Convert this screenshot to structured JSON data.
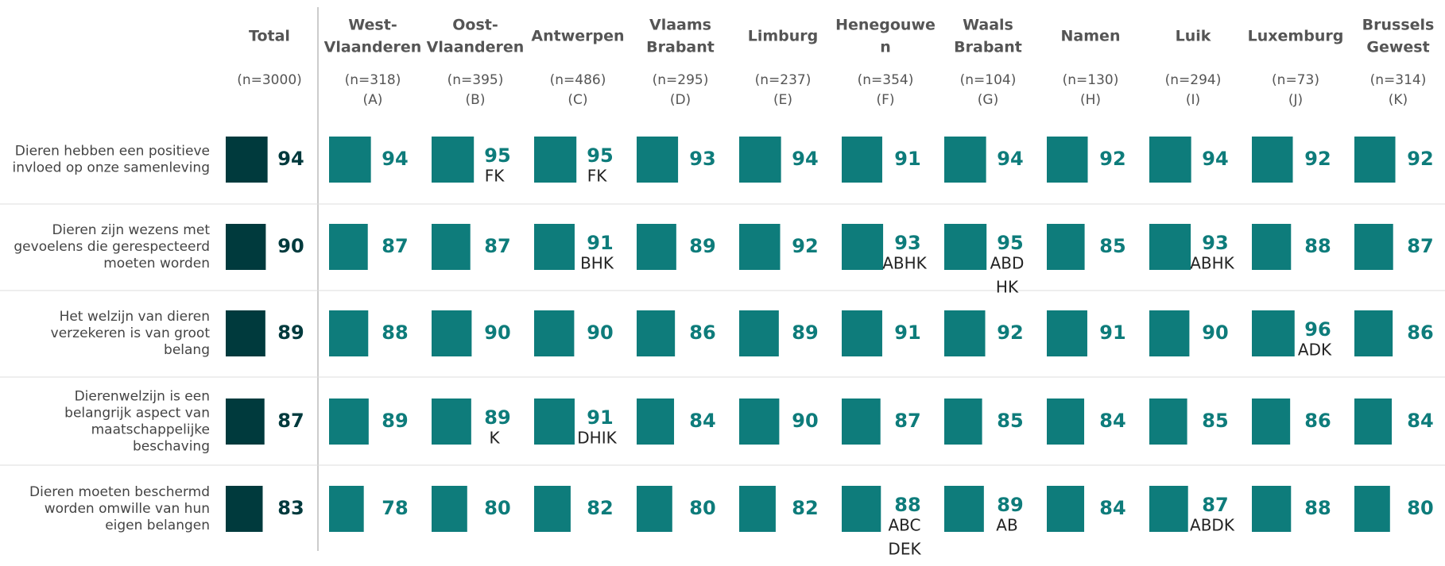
{
  "columns": [
    {
      "name": [
        "Total"
      ],
      "n": "(n=3000)"
    },
    {
      "name": [
        "West-",
        "Vlaanderen"
      ],
      "n": "(n=318)",
      "letter": "(A)"
    },
    {
      "name": [
        "Oost-",
        "Vlaanderen"
      ],
      "n": "(n=395)",
      "letter": "(B)"
    },
    {
      "name": [
        "Antwerpen"
      ],
      "n": "(n=486)",
      "letter": "(C)"
    },
    {
      "name": [
        "Vlaams",
        "Brabant"
      ],
      "n": "(n=295)",
      "letter": "(D)"
    },
    {
      "name": [
        "Limburg"
      ],
      "n": "(n=237)",
      "letter": "(E)"
    },
    {
      "name": [
        "Henegouwe",
        "n"
      ],
      "n": "(n=354)",
      "letter": "(F)"
    },
    {
      "name": [
        "Waals",
        "Brabant"
      ],
      "n": "(n=104)",
      "letter": "(G)"
    },
    {
      "name": [
        "Namen"
      ],
      "n": "(n=130)",
      "letter": "(H)"
    },
    {
      "name": [
        "Luik"
      ],
      "n": "(n=294)",
      "letter": "(I)"
    },
    {
      "name": [
        "Luxemburg"
      ],
      "n": "(n=73)",
      "letter": "(J)"
    },
    {
      "name": [
        "Brussels",
        "Gewest"
      ],
      "n": "(n=314)",
      "letter": "(K)"
    }
  ],
  "rows": [
    {
      "label": [
        "Dieren hebben een positieve",
        "invloed op onze samenleving"
      ],
      "values": [
        94,
        94,
        95,
        95,
        93,
        94,
        91,
        94,
        92,
        94,
        92,
        92
      ],
      "sig": [
        null,
        null,
        [
          "FK"
        ],
        [
          "FK"
        ],
        null,
        null,
        null,
        null,
        null,
        null,
        null,
        null
      ]
    },
    {
      "label": [
        "Dieren zijn wezens met",
        "gevoelens die gerespecteerd",
        "moeten worden"
      ],
      "values": [
        90,
        87,
        87,
        91,
        89,
        92,
        93,
        95,
        85,
        93,
        88,
        87
      ],
      "sig": [
        null,
        null,
        null,
        [
          "BHK"
        ],
        null,
        null,
        [
          "ABHK"
        ],
        [
          "ABD",
          "HK"
        ],
        null,
        [
          "ABHK"
        ],
        null,
        null
      ]
    },
    {
      "label": [
        "Het welzijn van dieren",
        "verzekeren is van groot",
        "belang"
      ],
      "values": [
        89,
        88,
        90,
        90,
        86,
        89,
        91,
        92,
        91,
        90,
        96,
        86
      ],
      "sig": [
        null,
        null,
        null,
        null,
        null,
        null,
        null,
        null,
        null,
        null,
        [
          "ADK"
        ],
        null
      ]
    },
    {
      "label": [
        "Dierenwelzijn is een",
        "belangrijk aspect van",
        "maatschappelijke",
        "beschaving"
      ],
      "values": [
        87,
        89,
        89,
        91,
        84,
        90,
        87,
        85,
        84,
        85,
        86,
        84
      ],
      "sig": [
        null,
        null,
        [
          "K"
        ],
        [
          "DHIK"
        ],
        null,
        null,
        null,
        null,
        null,
        null,
        null,
        null
      ]
    },
    {
      "label": [
        "Dieren moeten beschermd",
        "worden omwille van hun",
        "eigen belangen"
      ],
      "values": [
        83,
        78,
        80,
        82,
        80,
        82,
        88,
        89,
        84,
        87,
        88,
        80
      ],
      "sig": [
        null,
        null,
        null,
        null,
        null,
        null,
        [
          "ABC",
          "DEK"
        ],
        [
          "AB"
        ],
        null,
        [
          "ABDK"
        ],
        null,
        null
      ]
    }
  ]
}
